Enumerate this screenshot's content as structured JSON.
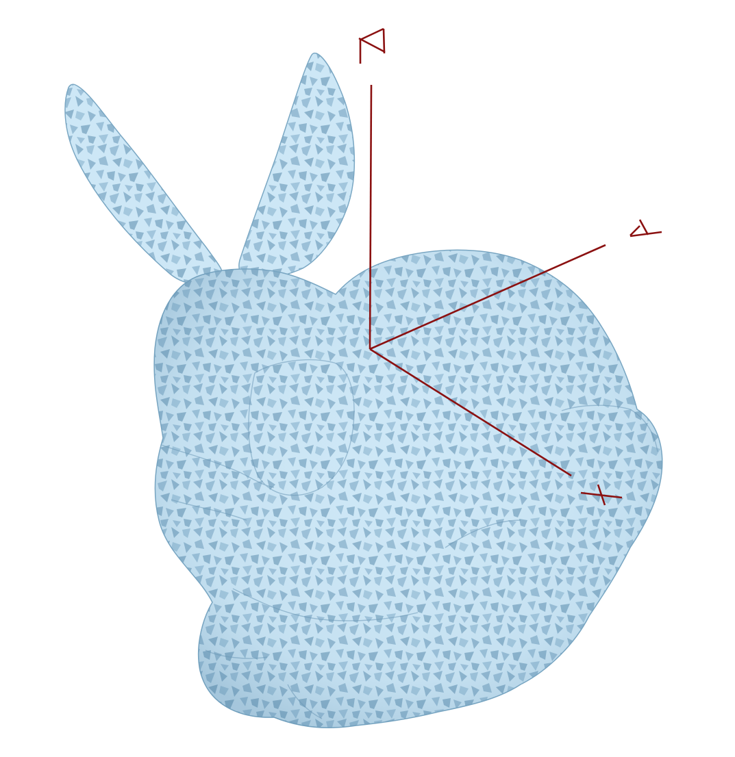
{
  "scene": {
    "model": "bunny",
    "colors": {
      "background": "#ffffff",
      "surface_light": "#cbe6f5",
      "surface_dark": "#8db4cd",
      "surface_edge": "#6d9ab8",
      "axis": "#8b1111"
    }
  },
  "axes": {
    "x": {
      "label": "X"
    },
    "y": {
      "label": "Y"
    },
    "z": {
      "label": "Z"
    }
  }
}
